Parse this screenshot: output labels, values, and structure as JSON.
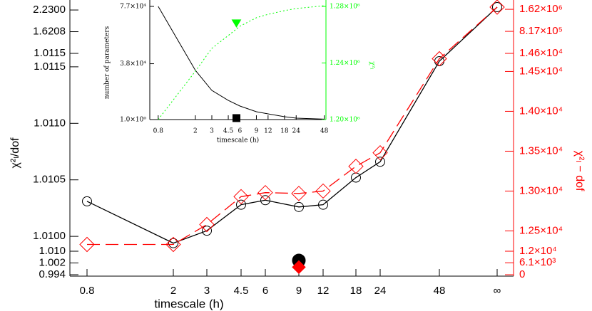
{
  "chart_data": [
    {
      "type": "line",
      "x_label": "timescale (h)",
      "y_label": "χ²ₗ/dof",
      "y2_label": "χ²ₗ − dof",
      "categories": [
        "0.8",
        "2",
        "3",
        "4.5",
        "6",
        "9",
        "12",
        "18",
        "24",
        "48",
        "∞"
      ],
      "series": [
        {
          "color": "#000000",
          "marker": "open-circle",
          "dash": "solid",
          "values": [
            1.01031,
            1.00994,
            1.01005,
            1.01028,
            1.01032,
            1.01026,
            1.01028,
            1.01052,
            1.01066,
            1.01155,
            2.311
          ]
        },
        {
          "color": "#ff0000",
          "marker": "open-diamond",
          "dash": "dashed",
          "axis": "y2",
          "values": [
            12330,
            12330,
            12580,
            12930,
            12980,
            12970,
            13000,
            13310,
            13480,
            14660,
            1700000
          ]
        }
      ],
      "points": [
        {
          "category": "9",
          "value": 1.0037,
          "color": "#000000",
          "marker": "filled-circle"
        },
        {
          "category": "9",
          "value": 3880,
          "color": "#ff0000",
          "marker": "filled-diamond",
          "axis": "y2"
        }
      ],
      "y_segments": [
        {
          "ylim": [
            0.994,
            1.01
          ],
          "yticks": [
            0.994,
            1.002,
            {
              "value": 1.01,
              "label": "1.010"
            }
          ]
        },
        {
          "ylim": [
            1.0099,
            1.0116
          ],
          "yticks": [
            {
              "value": 1.01,
              "label": "1.0100"
            },
            1.0105,
            {
              "value": 1.011,
              "label": "1.0110"
            },
            1.0115
          ]
        },
        {
          "ylim": [
            1.0115,
            2.311
          ],
          "yticks": [
            1.0115,
            1.6208,
            {
              "value": 2.23,
              "label": "2.2300"
            }
          ]
        }
      ],
      "y2_segments": [
        {
          "ylim": [
            0,
            12000
          ],
          "yticks": [
            0,
            {
              "value": 6100,
              "label": "6.1×10³"
            },
            {
              "value": 12000,
              "label": "1.2×10⁴"
            }
          ]
        },
        {
          "ylim": [
            12290,
            14700
          ],
          "yticks": [
            {
              "value": 12500,
              "label": "1.25×10⁴"
            },
            {
              "value": 13000,
              "label": "1.30×10⁴"
            },
            {
              "value": 13500,
              "label": "1.35×10⁴"
            },
            {
              "value": 14000,
              "label": "1.40×10⁴"
            },
            {
              "value": 14500,
              "label": "1.45×10⁴"
            }
          ]
        },
        {
          "ylim": [
            14600,
            1700000
          ],
          "yticks": [
            {
              "value": 14600,
              "label": "1.46×10⁴"
            },
            {
              "value": 817000,
              "label": "8.17×10⁵"
            },
            {
              "value": 1620000,
              "label": "1.62×10⁶"
            }
          ]
        }
      ],
      "y2_color": "#ff0000"
    },
    {
      "type": "line",
      "xscale": "log",
      "x_label": "timescale (h)",
      "y_label": "number of parameters",
      "y2_label": "χ²ₗ",
      "x": [
        0.8,
        2,
        3,
        4.5,
        6,
        9,
        12,
        18,
        24,
        48
      ],
      "xlim": [
        0.65,
        50
      ],
      "xticks": [
        0.8,
        2,
        3,
        4.5,
        6,
        9,
        12,
        18,
        24,
        48
      ],
      "ylim": [
        1,
        77000
      ],
      "yticks": [
        {
          "value": 1,
          "label": "1.0×10⁰"
        },
        {
          "value": 38000,
          "label": "3.8×10⁴"
        },
        {
          "value": 77000,
          "label": "7.7×10⁴"
        }
      ],
      "y2lim": [
        1200000,
        1280000
      ],
      "y2ticks": [
        {
          "value": 1200000,
          "label": "1.20×10⁶"
        },
        {
          "value": 1240000,
          "label": "1.24×10⁶"
        },
        {
          "value": 1280000,
          "label": "1.28×10⁶"
        }
      ],
      "y2_color": "#00ff00",
      "series": [
        {
          "color": "#000000",
          "dash": "solid",
          "values": [
            77000,
            33500,
            19850,
            13070,
            9200,
            5330,
            3870,
            1940,
            970,
            300
          ]
        },
        {
          "color": "#00ff00",
          "dash": "dotted",
          "axis": "y2",
          "values": [
            1200000,
            1234200,
            1250300,
            1259400,
            1266000,
            1272000,
            1274400,
            1277000,
            1278500,
            1280500
          ]
        }
      ],
      "points": [
        {
          "x": 5.5,
          "value": 1000,
          "color": "#000000",
          "marker": "filled-square"
        },
        {
          "x": 5.5,
          "value": 1268000,
          "color": "#00ff00",
          "marker": "filled-triangle-down",
          "axis": "y2"
        }
      ]
    }
  ]
}
